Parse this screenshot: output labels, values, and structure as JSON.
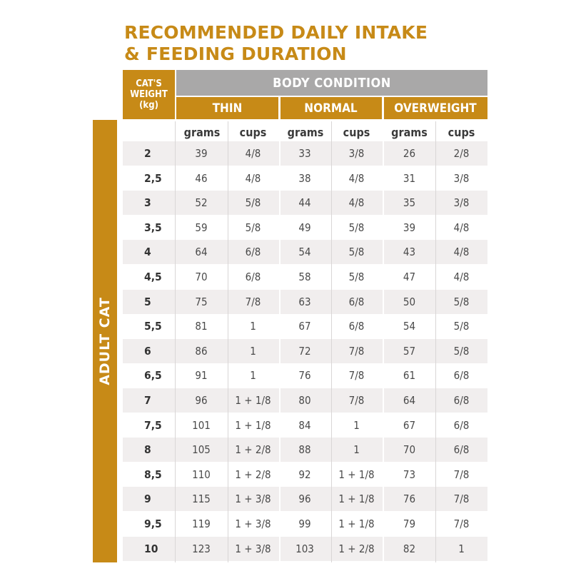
{
  "title": {
    "line1": "RECOMMENDED DAILY INTAKE",
    "line2": "& FEEDING DURATION"
  },
  "side_label": "ADULT CAT",
  "table": {
    "weight_header": [
      "CAT'S",
      "WEIGHT",
      "(kg)"
    ],
    "body_condition": "BODY CONDITION",
    "conditions": [
      "THIN",
      "NORMAL",
      "OVERWEIGHT"
    ],
    "units": [
      "grams",
      "cups",
      "grams",
      "cups",
      "grams",
      "cups"
    ],
    "rows": [
      {
        "weight": "2",
        "cells": [
          "39",
          "4/8",
          "33",
          "3/8",
          "26",
          "2/8"
        ]
      },
      {
        "weight": "2,5",
        "cells": [
          "46",
          "4/8",
          "38",
          "4/8",
          "31",
          "3/8"
        ]
      },
      {
        "weight": "3",
        "cells": [
          "52",
          "5/8",
          "44",
          "4/8",
          "35",
          "3/8"
        ]
      },
      {
        "weight": "3,5",
        "cells": [
          "59",
          "5/8",
          "49",
          "5/8",
          "39",
          "4/8"
        ]
      },
      {
        "weight": "4",
        "cells": [
          "64",
          "6/8",
          "54",
          "5/8",
          "43",
          "4/8"
        ]
      },
      {
        "weight": "4,5",
        "cells": [
          "70",
          "6/8",
          "58",
          "5/8",
          "47",
          "4/8"
        ]
      },
      {
        "weight": "5",
        "cells": [
          "75",
          "7/8",
          "63",
          "6/8",
          "50",
          "5/8"
        ]
      },
      {
        "weight": "5,5",
        "cells": [
          "81",
          "1",
          "67",
          "6/8",
          "54",
          "5/8"
        ]
      },
      {
        "weight": "6",
        "cells": [
          "86",
          "1",
          "72",
          "7/8",
          "57",
          "5/8"
        ]
      },
      {
        "weight": "6,5",
        "cells": [
          "91",
          "1",
          "76",
          "7/8",
          "61",
          "6/8"
        ]
      },
      {
        "weight": "7",
        "cells": [
          "96",
          "1 + 1/8",
          "80",
          "7/8",
          "64",
          "6/8"
        ]
      },
      {
        "weight": "7,5",
        "cells": [
          "101",
          "1 + 1/8",
          "84",
          "1",
          "67",
          "6/8"
        ]
      },
      {
        "weight": "8",
        "cells": [
          "105",
          "1 + 2/8",
          "88",
          "1",
          "70",
          "6/8"
        ]
      },
      {
        "weight": "8,5",
        "cells": [
          "110",
          "1 + 2/8",
          "92",
          "1 + 1/8",
          "73",
          "7/8"
        ]
      },
      {
        "weight": "9",
        "cells": [
          "115",
          "1 + 3/8",
          "96",
          "1 + 1/8",
          "76",
          "7/8"
        ]
      },
      {
        "weight": "9,5",
        "cells": [
          "119",
          "1 + 3/8",
          "99",
          "1 + 1/8",
          "79",
          "7/8"
        ]
      },
      {
        "weight": "10",
        "cells": [
          "123",
          "1 + 3/8",
          "103",
          "1 + 2/8",
          "82",
          "1"
        ]
      }
    ]
  },
  "colors": {
    "accent": "#c78a17",
    "header_gray": "#a9a8a8",
    "row_shade": "#f1eeee"
  }
}
